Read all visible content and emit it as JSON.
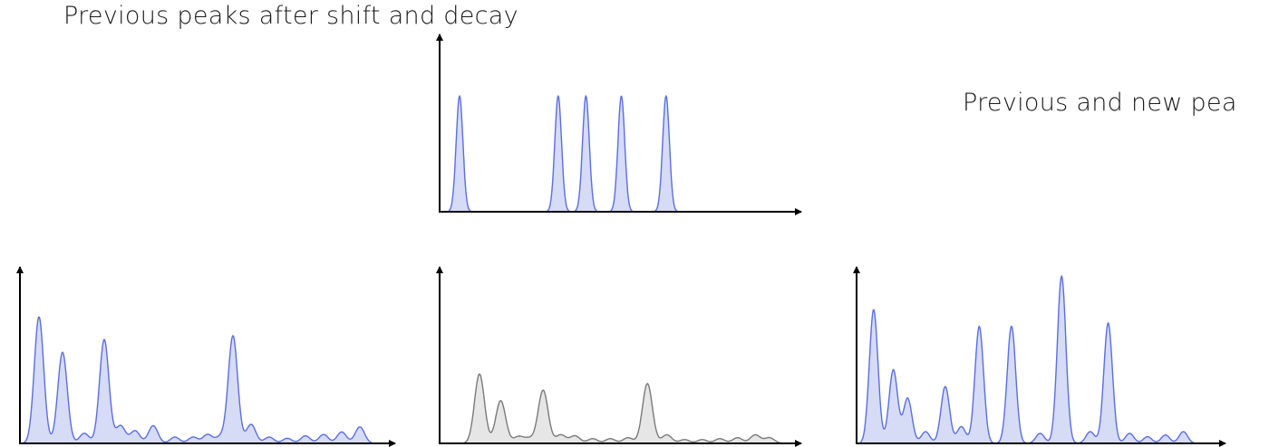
{
  "labels": {
    "left": "Previous peaks after shift and decay",
    "right": "Previous and new pea"
  },
  "colors": {
    "blue_stroke": "#5b6ee1",
    "blue_fill": "#d6dbf6",
    "gray_stroke": "#7a7a7a",
    "gray_fill": "#e6e6e6",
    "axis": "#000000"
  },
  "panels": {
    "top_middle": {
      "style": "blue",
      "peaks": [
        [
          0.05,
          1.0
        ],
        [
          0.37,
          1.0
        ],
        [
          0.46,
          1.0
        ],
        [
          0.575,
          1.0
        ],
        [
          0.72,
          1.0
        ]
      ],
      "width": 0.011
    },
    "bottom_left": {
      "style": "blue",
      "peaks": [
        [
          0.045,
          1.0
        ],
        [
          0.11,
          0.72
        ],
        [
          0.17,
          0.08
        ],
        [
          0.225,
          0.82
        ],
        [
          0.27,
          0.14
        ],
        [
          0.31,
          0.1
        ],
        [
          0.36,
          0.14
        ],
        [
          0.42,
          0.05
        ],
        [
          0.47,
          0.05
        ],
        [
          0.51,
          0.07
        ],
        [
          0.545,
          0.05
        ],
        [
          0.58,
          0.85
        ],
        [
          0.63,
          0.15
        ],
        [
          0.68,
          0.05
        ],
        [
          0.73,
          0.04
        ],
        [
          0.78,
          0.06
        ],
        [
          0.83,
          0.07
        ],
        [
          0.88,
          0.09
        ],
        [
          0.93,
          0.13
        ]
      ],
      "width": 0.013
    },
    "bottom_middle": {
      "style": "gray",
      "peaks": [
        [
          0.1,
          0.73
        ],
        [
          0.16,
          0.45
        ],
        [
          0.21,
          0.07
        ],
        [
          0.24,
          0.05
        ],
        [
          0.28,
          0.56
        ],
        [
          0.33,
          0.09
        ],
        [
          0.37,
          0.08
        ],
        [
          0.42,
          0.05
        ],
        [
          0.47,
          0.05
        ],
        [
          0.52,
          0.06
        ],
        [
          0.575,
          0.63
        ],
        [
          0.63,
          0.09
        ],
        [
          0.68,
          0.04
        ],
        [
          0.73,
          0.04
        ],
        [
          0.78,
          0.05
        ],
        [
          0.83,
          0.06
        ],
        [
          0.88,
          0.09
        ],
        [
          0.92,
          0.06
        ]
      ],
      "width": 0.014
    },
    "bottom_right": {
      "style": "blue",
      "peaks": [
        [
          0.035,
          0.8
        ],
        [
          0.09,
          0.44
        ],
        [
          0.13,
          0.27
        ],
        [
          0.18,
          0.07
        ],
        [
          0.235,
          0.34
        ],
        [
          0.28,
          0.1
        ],
        [
          0.33,
          0.7
        ],
        [
          0.42,
          0.7
        ],
        [
          0.5,
          0.06
        ],
        [
          0.56,
          1.0
        ],
        [
          0.64,
          0.07
        ],
        [
          0.69,
          0.72
        ],
        [
          0.75,
          0.06
        ],
        [
          0.8,
          0.04
        ],
        [
          0.85,
          0.05
        ],
        [
          0.9,
          0.07
        ]
      ],
      "width": 0.012
    }
  }
}
